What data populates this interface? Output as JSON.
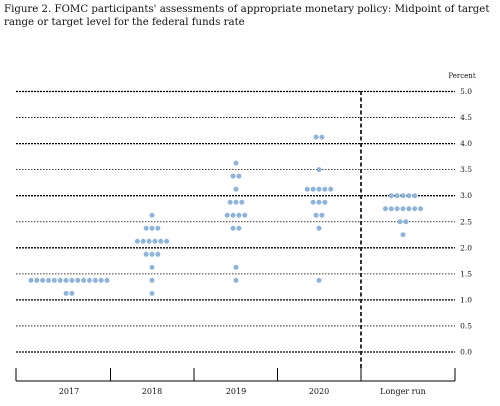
{
  "title": "Figure 2. FOMC participants' assessments of appropriate monetary policy: Midpoint of target range or target level for the federal funds rate",
  "chart_data": {
    "type": "scatter",
    "title": "Figure 2. FOMC participants' assessments of appropriate monetary policy: Midpoint of target range or target level for the federal funds rate",
    "ylabel": "Percent",
    "ylim": [
      0,
      5
    ],
    "yticks": [
      "0.0",
      "0.5",
      "1.0",
      "1.5",
      "2.0",
      "2.5",
      "3.0",
      "3.5",
      "4.0",
      "4.5",
      "5.0"
    ],
    "categories": [
      "2017",
      "2018",
      "2019",
      "2020",
      "Longer run"
    ],
    "grid": true,
    "dot_color": "#8fb3d9",
    "separator": "dashed vertical line between 2020 and Longer run",
    "series": [
      {
        "category": "2017",
        "points": [
          {
            "y": 1.375,
            "count": 14
          },
          {
            "y": 1.125,
            "count": 2
          }
        ]
      },
      {
        "category": "2018",
        "points": [
          {
            "y": 2.625,
            "count": 1
          },
          {
            "y": 2.375,
            "count": 3
          },
          {
            "y": 2.125,
            "count": 6
          },
          {
            "y": 1.875,
            "count": 3
          },
          {
            "y": 1.625,
            "count": 1
          },
          {
            "y": 1.375,
            "count": 1
          },
          {
            "y": 1.125,
            "count": 1
          }
        ]
      },
      {
        "category": "2019",
        "points": [
          {
            "y": 3.625,
            "count": 1
          },
          {
            "y": 3.375,
            "count": 2
          },
          {
            "y": 3.125,
            "count": 1
          },
          {
            "y": 2.875,
            "count": 3
          },
          {
            "y": 2.625,
            "count": 4
          },
          {
            "y": 2.375,
            "count": 2
          },
          {
            "y": 1.625,
            "count": 1
          },
          {
            "y": 1.375,
            "count": 1
          }
        ]
      },
      {
        "category": "2020",
        "points": [
          {
            "y": 4.125,
            "count": 2
          },
          {
            "y": 3.5,
            "count": 1
          },
          {
            "y": 3.125,
            "count": 5
          },
          {
            "y": 2.875,
            "count": 3
          },
          {
            "y": 2.625,
            "count": 2
          },
          {
            "y": 2.375,
            "count": 1
          },
          {
            "y": 1.375,
            "count": 1
          }
        ]
      },
      {
        "category": "Longer run",
        "points": [
          {
            "y": 3.0,
            "count": 5
          },
          {
            "y": 2.75,
            "count": 7
          },
          {
            "y": 2.5,
            "count": 2
          },
          {
            "y": 2.25,
            "count": 1
          }
        ]
      }
    ]
  }
}
